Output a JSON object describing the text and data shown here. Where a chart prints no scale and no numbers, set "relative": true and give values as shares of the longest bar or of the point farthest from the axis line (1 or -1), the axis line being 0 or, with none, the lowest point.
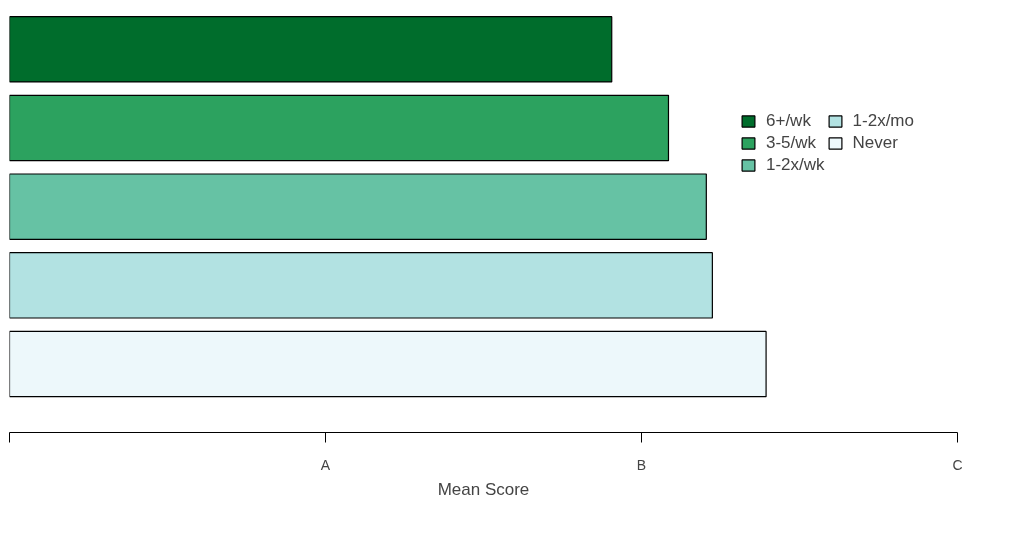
{
  "chart_data": {
    "type": "bar",
    "orientation": "horizontal",
    "stacked": true,
    "xlabel": "Mean Score",
    "categories": [
      null,
      null,
      null,
      null,
      null
    ],
    "series": [
      {
        "name": "6+/wk",
        "color": "#006d2c",
        "values": [
          0.796,
          null,
          null,
          null,
          null
        ]
      },
      {
        "name": "3-5/wk",
        "color": "#2ca25f",
        "values": [
          null,
          0.871,
          null,
          null,
          null
        ]
      },
      {
        "name": "1-2x/wk",
        "color": "#66c2a4",
        "values": [
          null,
          null,
          0.921,
          null,
          null
        ]
      },
      {
        "name": "1-2x/mo",
        "color": "#b2e2e2",
        "values": [
          null,
          null,
          null,
          0.929,
          null
        ]
      },
      {
        "name": "Never",
        "color": "#edf8fb",
        "values": [
          null,
          null,
          null,
          null,
          1
        ]
      }
    ],
    "relative": true,
    "annotations": [
      "A",
      "B",
      "C"
    ],
    "tick_labels": "x",
    "grid": false,
    "legend": "top right"
  }
}
